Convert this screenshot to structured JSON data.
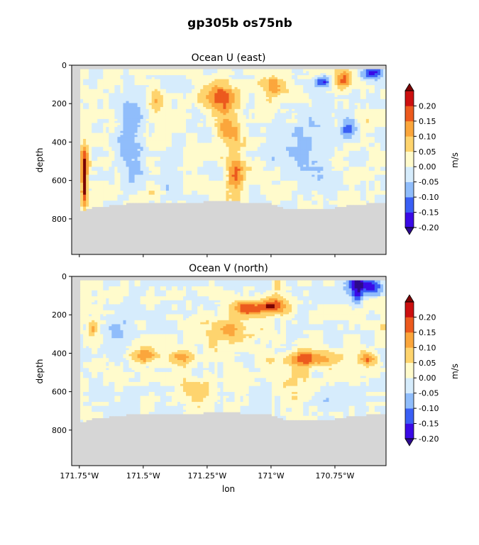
{
  "figure": {
    "suptitle": "gp305b os75nb"
  },
  "chart_data": [
    {
      "type": "heatmap",
      "title": "Ocean U (east)",
      "xlabel": "",
      "ylabel": "depth",
      "xlim": [
        -171.78,
        -170.55
      ],
      "ylim": [
        985,
        0
      ],
      "yticks": [
        0,
        200,
        400,
        600,
        800
      ],
      "ytick_labels": [
        "0",
        "200",
        "400",
        "600",
        "800"
      ],
      "xticks": [
        -171.75,
        -171.5,
        -171.25,
        -171.0,
        -170.75
      ],
      "xtick_labels_shown": false,
      "data_top_depth": 25,
      "bottom_depth_by_lon": [
        [
          -171.74,
          760
        ],
        [
          -171.72,
          745
        ],
        [
          -171.68,
          738
        ],
        [
          -171.62,
          728
        ],
        [
          -171.55,
          718
        ],
        [
          -171.45,
          720
        ],
        [
          -171.35,
          715
        ],
        [
          -171.28,
          712
        ],
        [
          -171.2,
          700
        ],
        [
          -171.1,
          712
        ],
        [
          -171.0,
          720
        ],
        [
          -170.95,
          745
        ],
        [
          -170.9,
          752
        ],
        [
          -170.85,
          748
        ],
        [
          -170.8,
          745
        ],
        [
          -170.75,
          742
        ],
        [
          -170.7,
          728
        ],
        [
          -170.65,
          722
        ],
        [
          -170.6,
          718
        ],
        [
          -170.55,
          712
        ]
      ],
      "features": [
        {
          "lon": -171.73,
          "depth": 620,
          "value": 0.22,
          "width": 0.012,
          "height": 120
        },
        {
          "lon": -171.73,
          "depth": 500,
          "value": 0.14,
          "width": 0.018,
          "height": 110
        },
        {
          "lon": -171.2,
          "depth": 170,
          "value": 0.15,
          "width": 0.06,
          "height": 90
        },
        {
          "lon": -171.17,
          "depth": 320,
          "value": 0.12,
          "width": 0.05,
          "height": 100
        },
        {
          "lon": -171.14,
          "depth": 560,
          "value": 0.14,
          "width": 0.035,
          "height": 150
        },
        {
          "lon": -170.99,
          "depth": 100,
          "value": 0.13,
          "width": 0.04,
          "height": 60
        },
        {
          "lon": -170.72,
          "depth": 70,
          "value": 0.18,
          "width": 0.035,
          "height": 60
        },
        {
          "lon": -170.8,
          "depth": 90,
          "value": -0.15,
          "width": 0.03,
          "height": 30
        },
        {
          "lon": -170.6,
          "depth": 40,
          "value": -0.16,
          "width": 0.04,
          "height": 30
        },
        {
          "lon": -170.7,
          "depth": 330,
          "value": -0.12,
          "width": 0.03,
          "height": 70
        },
        {
          "lon": -171.55,
          "depth": 400,
          "value": -0.08,
          "width": 0.05,
          "height": 200
        },
        {
          "lon": -170.85,
          "depth": 420,
          "value": -0.06,
          "width": 0.08,
          "height": 200
        },
        {
          "lon": -171.45,
          "depth": 180,
          "value": 0.08,
          "width": 0.03,
          "height": 60
        }
      ],
      "colorbar": {
        "label": "m/s",
        "levels": [
          -0.2,
          -0.15,
          -0.1,
          -0.05,
          0.0,
          0.05,
          0.1,
          0.15,
          0.2
        ],
        "tick_labels": [
          "-0.20",
          "-0.15",
          "-0.10",
          "-0.05",
          "0.00",
          "0.05",
          "0.10",
          "0.15",
          "0.20"
        ],
        "colors": [
          "#3a0ae6",
          "#3a5ff5",
          "#90bdfb",
          "#d6ecfc",
          "#fffbcc",
          "#fed46e",
          "#fba63c",
          "#ec5a1e",
          "#cc1010"
        ],
        "under_color": "#2c0a8c",
        "over_color": "#7a0505"
      }
    },
    {
      "type": "heatmap",
      "title": "Ocean V (north)",
      "xlabel": "lon",
      "ylabel": "depth",
      "xlim": [
        -171.78,
        -170.55
      ],
      "ylim": [
        985,
        0
      ],
      "yticks": [
        0,
        200,
        400,
        600,
        800
      ],
      "ytick_labels": [
        "0",
        "200",
        "400",
        "600",
        "800"
      ],
      "xticks": [
        -171.75,
        -171.5,
        -171.25,
        -171.0,
        -170.75
      ],
      "xtick_labels": [
        "171.75°W",
        "171.5°W",
        "171.25°W",
        "171°W",
        "170.75°W"
      ],
      "xtick_labels_shown": true,
      "data_top_depth": 25,
      "bottom_depth_by_lon": [
        [
          -171.74,
          760
        ],
        [
          -171.72,
          745
        ],
        [
          -171.68,
          738
        ],
        [
          -171.62,
          728
        ],
        [
          -171.55,
          718
        ],
        [
          -171.45,
          720
        ],
        [
          -171.35,
          715
        ],
        [
          -171.28,
          712
        ],
        [
          -171.2,
          700
        ],
        [
          -171.1,
          712
        ],
        [
          -171.0,
          720
        ],
        [
          -170.95,
          745
        ],
        [
          -170.9,
          752
        ],
        [
          -170.85,
          748
        ],
        [
          -170.8,
          745
        ],
        [
          -170.75,
          742
        ],
        [
          -170.7,
          728
        ],
        [
          -170.65,
          722
        ],
        [
          -170.6,
          718
        ],
        [
          -170.55,
          712
        ]
      ],
      "features": [
        {
          "lon": -171.08,
          "depth": 165,
          "value": 0.2,
          "width": 0.07,
          "height": 35
        },
        {
          "lon": -170.99,
          "depth": 150,
          "value": 0.18,
          "width": 0.05,
          "height": 45
        },
        {
          "lon": -171.15,
          "depth": 280,
          "value": 0.11,
          "width": 0.09,
          "height": 70
        },
        {
          "lon": -170.85,
          "depth": 430,
          "value": 0.17,
          "width": 0.1,
          "height": 45
        },
        {
          "lon": -170.62,
          "depth": 430,
          "value": 0.14,
          "width": 0.04,
          "height": 40
        },
        {
          "lon": -171.5,
          "depth": 410,
          "value": 0.14,
          "width": 0.06,
          "height": 40
        },
        {
          "lon": -171.35,
          "depth": 420,
          "value": 0.12,
          "width": 0.05,
          "height": 40
        },
        {
          "lon": -171.7,
          "depth": 270,
          "value": 0.12,
          "width": 0.02,
          "height": 40
        },
        {
          "lon": -170.66,
          "depth": 40,
          "value": -0.22,
          "width": 0.04,
          "height": 45
        },
        {
          "lon": -170.66,
          "depth": 110,
          "value": -0.14,
          "width": 0.025,
          "height": 50
        },
        {
          "lon": -170.6,
          "depth": 60,
          "value": -0.12,
          "width": 0.03,
          "height": 40
        },
        {
          "lon": -171.3,
          "depth": 600,
          "value": 0.07,
          "width": 0.08,
          "height": 80
        },
        {
          "lon": -170.9,
          "depth": 560,
          "value": 0.06,
          "width": 0.08,
          "height": 80
        },
        {
          "lon": -171.6,
          "depth": 300,
          "value": -0.05,
          "width": 0.06,
          "height": 150
        }
      ],
      "colorbar": {
        "label": "m/s",
        "levels": [
          -0.2,
          -0.15,
          -0.1,
          -0.05,
          0.0,
          0.05,
          0.1,
          0.15,
          0.2
        ],
        "tick_labels": [
          "-0.20",
          "-0.15",
          "-0.10",
          "-0.05",
          "0.00",
          "0.05",
          "0.10",
          "0.15",
          "0.20"
        ],
        "colors": [
          "#3a0ae6",
          "#3a5ff5",
          "#90bdfb",
          "#d6ecfc",
          "#fffbcc",
          "#fed46e",
          "#fba63c",
          "#ec5a1e",
          "#cc1010"
        ],
        "under_color": "#2c0a8c",
        "over_color": "#7a0505"
      }
    }
  ],
  "colors": {
    "land": "#d6d6d6",
    "axis": "#000000"
  }
}
